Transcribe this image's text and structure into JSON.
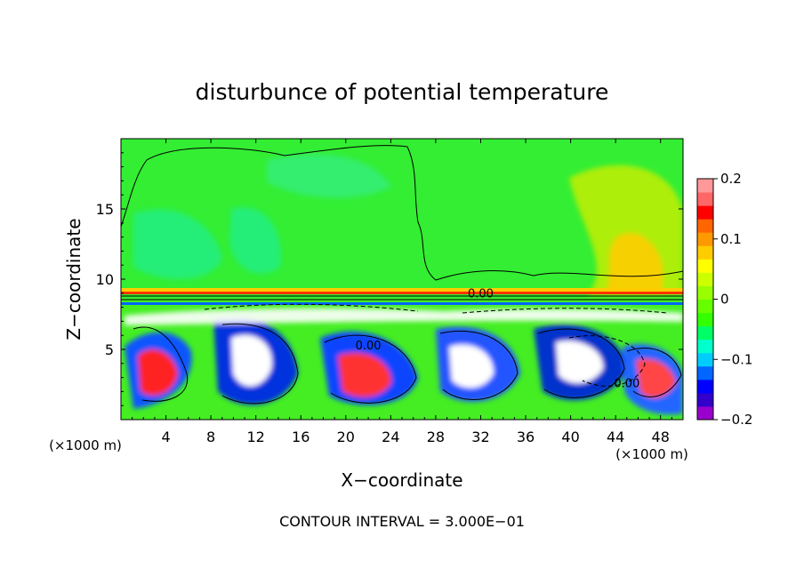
{
  "chart_data": {
    "type": "heatmap",
    "title": "disturbunce of potential temperature",
    "xlabel": "X−coordinate",
    "ylabel": "Z−coordinate",
    "x_unit_label": "(×1000 m)",
    "x_unit_label_right": "(×1000 m)",
    "xlim": [
      0,
      50
    ],
    "ylim": [
      0,
      20
    ],
    "xticks": [
      4,
      8,
      12,
      16,
      20,
      24,
      28,
      32,
      36,
      40,
      44,
      48
    ],
    "yticks": [
      5,
      10,
      15
    ],
    "footer": "CONTOUR INTERVAL = 3.000E−01",
    "colorbar": {
      "range": [
        -0.2,
        0.2
      ],
      "ticks": [
        {
          "value": 0.2,
          "label": "0.2"
        },
        {
          "value": 0.1,
          "label": "0.1"
        },
        {
          "value": 0,
          "label": "0"
        },
        {
          "value": -0.1,
          "label": "−0.1"
        },
        {
          "value": -0.2,
          "label": "−0.2"
        }
      ],
      "colors": [
        "#9900cc",
        "#3300cc",
        "#0000ff",
        "#0066ff",
        "#00ccff",
        "#00ffcc",
        "#00ff66",
        "#33ff00",
        "#66ff00",
        "#99ff00",
        "#ccff00",
        "#ffff00",
        "#ffcc00",
        "#ff9900",
        "#ff6600",
        "#ff0000",
        "#ff6666",
        "#ff9999"
      ]
    },
    "contour_labels": [
      {
        "x": 32,
        "z": 8.7,
        "text": "0.00"
      },
      {
        "x": 22,
        "z": 5.0,
        "text": "0.00"
      },
      {
        "x": 45,
        "z": 2.3,
        "text": "0.00"
      }
    ],
    "grid": false
  }
}
